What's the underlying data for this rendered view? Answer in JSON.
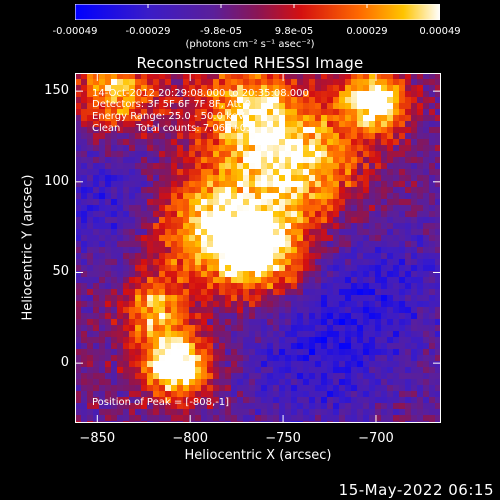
{
  "colorbar": {
    "tick_labels": [
      "-0.00049",
      "-0.00029",
      "-9.8e-05",
      "9.8e-05",
      "0.00029",
      "0.00049"
    ],
    "units_label": "(photons cm⁻² s⁻¹ asec⁻²)",
    "range": [
      -0.00049,
      0.00049
    ]
  },
  "title": "Reconstructed RHESSI Image",
  "annotations": {
    "time_range": "14-Oct-2012 20:29:08.000 to 20:35:08.000",
    "detectors": "Detectors: 3F 5F 6F 7F 8F, Att 0",
    "energy": "Energy Range: 25.0 - 50.0 keV",
    "method": "Clean     Total counts: 7.06E+03",
    "peak": "Position of Peak = [-808,-1]"
  },
  "timestamp": "15-May-2022 06:15",
  "chart_data": {
    "type": "heatmap",
    "title": "Reconstructed RHESSI Image",
    "xlabel": "Heliocentric X (arcsec)",
    "ylabel": "Heliocentric Y (arcsec)",
    "xlim": [
      -862,
      -665
    ],
    "ylim": [
      -33,
      160
    ],
    "xticks": [
      -850,
      -800,
      -750,
      -700
    ],
    "xtick_labels": [
      "−850",
      "−800",
      "−750",
      "−700"
    ],
    "yticks": [
      0,
      50,
      100,
      150
    ],
    "ytick_labels": [
      "0",
      "50",
      "100",
      "150"
    ],
    "colormap": "rainbow (blue-purple-red-orange-yellow-white)",
    "peak_position": [
      -808,
      -1
    ],
    "bright_sources": [
      {
        "x": -808,
        "y": -1,
        "intensity": 1.0,
        "sigma": 13
      },
      {
        "x": -700,
        "y": 145,
        "intensity": 0.9,
        "sigma": 12
      },
      {
        "x": -790,
        "y": 75,
        "intensity": 0.72,
        "sigma": 22
      },
      {
        "x": -760,
        "y": 60,
        "intensity": 0.7,
        "sigma": 18
      },
      {
        "x": -740,
        "y": 110,
        "intensity": 0.68,
        "sigma": 24
      },
      {
        "x": -840,
        "y": 150,
        "intensity": 0.62,
        "sigma": 16
      },
      {
        "x": -770,
        "y": 140,
        "intensity": 0.6,
        "sigma": 20
      },
      {
        "x": -820,
        "y": 30,
        "intensity": 0.55,
        "sigma": 12
      }
    ],
    "dark_regions": [
      {
        "x": -845,
        "y": 90,
        "sigma": 22
      },
      {
        "x": -700,
        "y": 40,
        "sigma": 30
      },
      {
        "x": -735,
        "y": 0,
        "sigma": 28
      }
    ],
    "colors": {
      "background": "#000000",
      "text": "#ffffff"
    }
  }
}
